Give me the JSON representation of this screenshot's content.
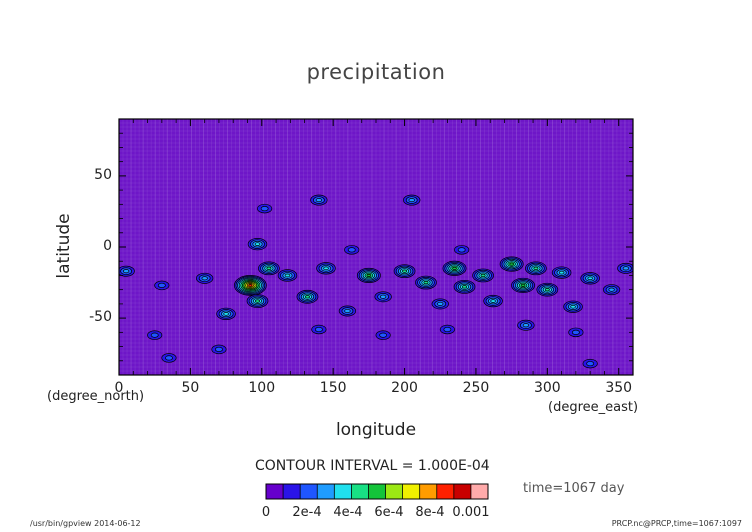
{
  "chart_data": {
    "type": "heatmap",
    "title": "precipitation",
    "xlabel": "longitude",
    "ylabel": "latitude",
    "x_unit": "(degree_east)",
    "y_unit": "(degree_north)",
    "xlim": [
      0,
      360
    ],
    "ylim": [
      -90,
      90
    ],
    "x_ticks": [
      0,
      50,
      100,
      150,
      200,
      250,
      300,
      350
    ],
    "y_ticks": [
      -50,
      0,
      50
    ],
    "contour_interval_label": "CONTOUR INTERVAL = 1.000E-04",
    "time_label": "time=1067 day",
    "colorbar": {
      "tick_labels": [
        "0",
        "2e-4",
        "4e-4",
        "6e-4",
        "8e-4",
        "0.001"
      ],
      "tick_values": [
        0,
        0.0002,
        0.0004,
        0.0006,
        0.0008,
        0.001
      ],
      "colors": [
        "#6600cc",
        "#2a14e8",
        "#1f56ff",
        "#1f9cff",
        "#20e0ee",
        "#18e084",
        "#14c43a",
        "#9ce814",
        "#f0f000",
        "#ff9c00",
        "#ff2000",
        "#c80000",
        "#ffaaaa"
      ]
    },
    "background_color": "#6e16c8",
    "features": [
      {
        "lon": 92,
        "lat": -27,
        "value": 0.001
      },
      {
        "lon": 97,
        "lat": -38,
        "value": 0.0005
      },
      {
        "lon": 97,
        "lat": 2,
        "value": 0.0004
      },
      {
        "lon": 102,
        "lat": 27,
        "value": 0.0002
      },
      {
        "lon": 140,
        "lat": 33,
        "value": 0.0003
      },
      {
        "lon": 205,
        "lat": 33,
        "value": 0.0003
      },
      {
        "lon": 163,
        "lat": -2,
        "value": 0.0002
      },
      {
        "lon": 240,
        "lat": -2,
        "value": 0.0002
      },
      {
        "lon": 5,
        "lat": -17,
        "value": 0.0003
      },
      {
        "lon": 30,
        "lat": -27,
        "value": 0.0002
      },
      {
        "lon": 60,
        "lat": -22,
        "value": 0.0003
      },
      {
        "lon": 75,
        "lat": -47,
        "value": 0.0004
      },
      {
        "lon": 105,
        "lat": -15,
        "value": 0.0005
      },
      {
        "lon": 118,
        "lat": -20,
        "value": 0.0004
      },
      {
        "lon": 132,
        "lat": -35,
        "value": 0.0005
      },
      {
        "lon": 145,
        "lat": -15,
        "value": 0.0004
      },
      {
        "lon": 160,
        "lat": -45,
        "value": 0.0003
      },
      {
        "lon": 175,
        "lat": -20,
        "value": 0.0006
      },
      {
        "lon": 185,
        "lat": -35,
        "value": 0.0003
      },
      {
        "lon": 200,
        "lat": -17,
        "value": 0.0005
      },
      {
        "lon": 215,
        "lat": -25,
        "value": 0.0005
      },
      {
        "lon": 225,
        "lat": -40,
        "value": 0.0003
      },
      {
        "lon": 235,
        "lat": -15,
        "value": 0.0006
      },
      {
        "lon": 242,
        "lat": -28,
        "value": 0.0005
      },
      {
        "lon": 255,
        "lat": -20,
        "value": 0.0005
      },
      {
        "lon": 262,
        "lat": -38,
        "value": 0.0004
      },
      {
        "lon": 275,
        "lat": -12,
        "value": 0.0006
      },
      {
        "lon": 283,
        "lat": -27,
        "value": 0.0006
      },
      {
        "lon": 292,
        "lat": -15,
        "value": 0.0005
      },
      {
        "lon": 300,
        "lat": -30,
        "value": 0.0005
      },
      {
        "lon": 310,
        "lat": -18,
        "value": 0.0004
      },
      {
        "lon": 318,
        "lat": -42,
        "value": 0.0004
      },
      {
        "lon": 330,
        "lat": -22,
        "value": 0.0004
      },
      {
        "lon": 345,
        "lat": -30,
        "value": 0.0003
      },
      {
        "lon": 355,
        "lat": -15,
        "value": 0.0003
      },
      {
        "lon": 25,
        "lat": -62,
        "value": 0.0002
      },
      {
        "lon": 70,
        "lat": -72,
        "value": 0.0002
      },
      {
        "lon": 140,
        "lat": -58,
        "value": 0.0002
      },
      {
        "lon": 185,
        "lat": -62,
        "value": 0.0002
      },
      {
        "lon": 230,
        "lat": -58,
        "value": 0.0002
      },
      {
        "lon": 285,
        "lat": -55,
        "value": 0.0003
      },
      {
        "lon": 320,
        "lat": -60,
        "value": 0.0002
      },
      {
        "lon": 35,
        "lat": -78,
        "value": 0.0002
      },
      {
        "lon": 330,
        "lat": -82,
        "value": 0.0002
      }
    ]
  },
  "footer": {
    "left": "/usr/bin/gpview  2014-06-12",
    "right": "PRCP.nc@PRCP,time=1067:1097"
  }
}
